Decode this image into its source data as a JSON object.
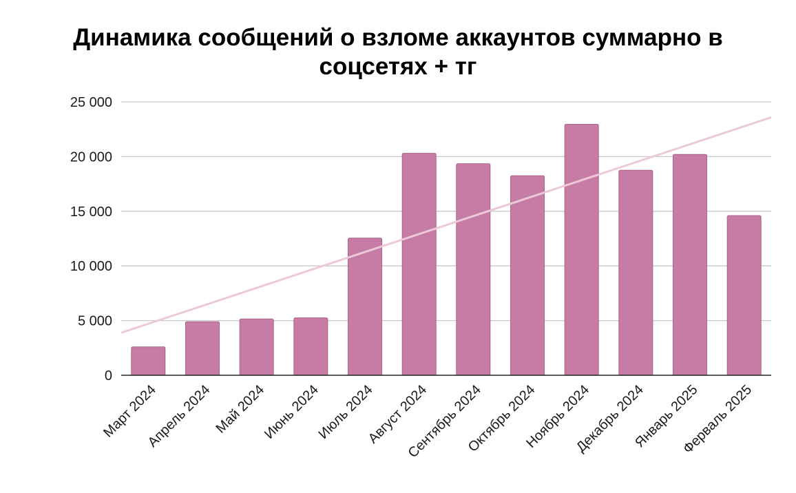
{
  "chart_data": {
    "type": "bar",
    "title": "Динамика сообщений о взломе аккаунтов суммарно в соцсетях + тг",
    "xlabel": "",
    "ylabel": "",
    "categories": [
      "Март 2024",
      "Апрель 2024",
      "Май 2024",
      "Июнь 2024",
      "Июль 2024",
      "Август 2024",
      "Сентябрь 2024",
      "Октябрь 2024",
      "Ноябрь 2024",
      "Декабрь 2024",
      "Январь 2025",
      "Ферваль 2025"
    ],
    "values": [
      2600,
      4900,
      5150,
      5250,
      12550,
      20300,
      19350,
      18250,
      22950,
      18750,
      20200,
      14600
    ],
    "ylim": [
      0,
      25000
    ],
    "yticks": [
      0,
      5000,
      10000,
      15000,
      20000,
      25000
    ],
    "ytick_labels": [
      "0",
      "5 000",
      "10 000",
      "15 000",
      "20 000",
      "25 000"
    ],
    "grid": true,
    "trendline": true,
    "colors": {
      "bar": "#c77ca6",
      "bar_border": "#a9628a",
      "trendline": "#edc9d6",
      "grid": "#c9c9c9",
      "axis": "#222222"
    }
  }
}
